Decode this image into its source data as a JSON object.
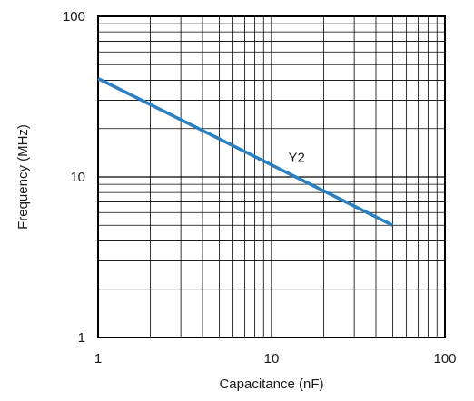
{
  "chart_data": {
    "type": "line",
    "xlabel": "Capacitance (nF)",
    "ylabel": "Frequency (MHz)",
    "x_scale": "log",
    "y_scale": "log",
    "xlim": [
      1,
      100
    ],
    "ylim": [
      1,
      100
    ],
    "x_ticks": [
      1,
      10,
      100
    ],
    "x_tick_labels": [
      "1",
      "10",
      "100"
    ],
    "y_ticks": [
      1,
      10,
      100
    ],
    "y_tick_labels": [
      "1",
      "10",
      "100"
    ],
    "grid": true,
    "grid_minor": true,
    "series": [
      {
        "name": "Y2",
        "color": "#2a7fc1",
        "x": [
          1,
          50
        ],
        "y": [
          41,
          5
        ]
      }
    ]
  }
}
